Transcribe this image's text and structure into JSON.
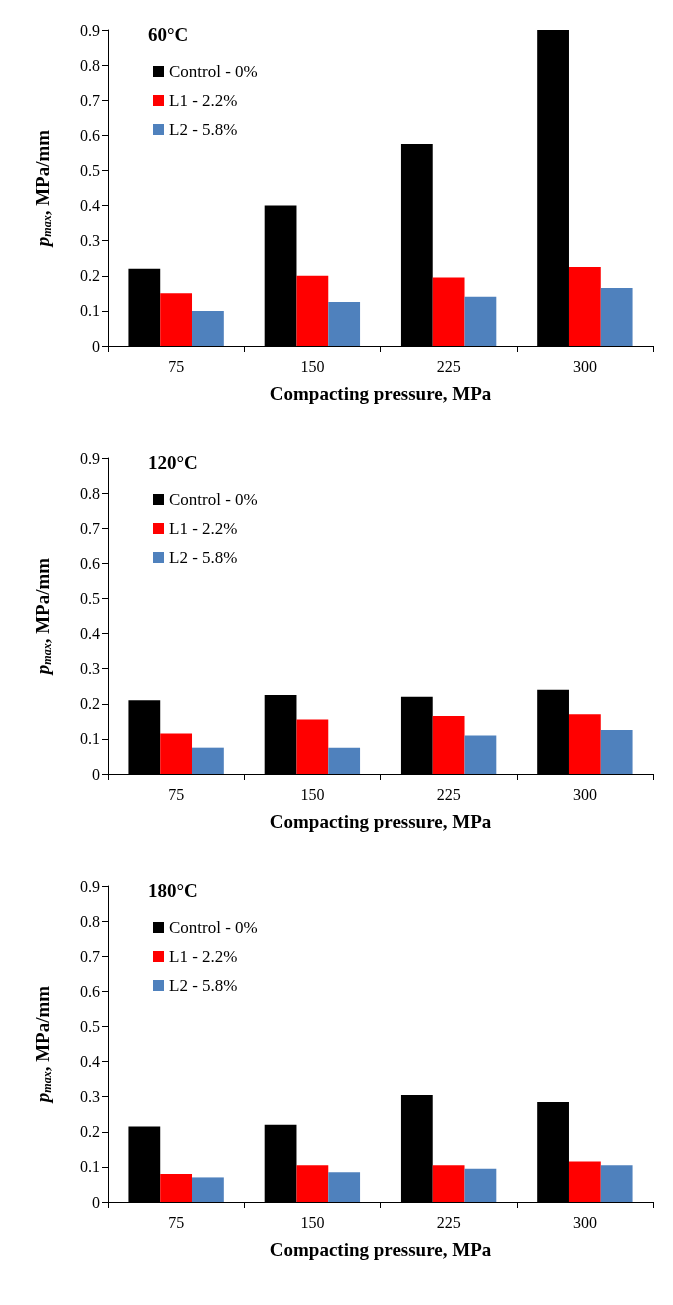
{
  "chart_data": [
    {
      "type": "bar",
      "title": "60°C",
      "xlabel": "Compacting pressure, MPa",
      "ylabel": "p$_{max}$, MPa/mm",
      "categories": [
        "75",
        "150",
        "225",
        "300"
      ],
      "series": [
        {
          "name": "Control - 0%",
          "color": "#000000",
          "values": [
            0.22,
            0.4,
            0.575,
            0.9
          ]
        },
        {
          "name": "L1 - 2.2%",
          "color": "#ff0000",
          "values": [
            0.15,
            0.2,
            0.195,
            0.225
          ]
        },
        {
          "name": "L2 - 5.8%",
          "color": "#4f81bd",
          "values": [
            0.1,
            0.125,
            0.14,
            0.165
          ]
        }
      ],
      "ylim": [
        0,
        0.9
      ],
      "yticks": [
        0,
        0.1,
        0.2,
        0.3,
        0.4,
        0.5,
        0.6,
        0.7,
        0.8,
        0.9
      ],
      "grid": false,
      "legend": "top left"
    },
    {
      "type": "bar",
      "title": "120°C",
      "xlabel": "Compacting pressure, MPa",
      "ylabel": "p$_{max}$, MPa/mm",
      "categories": [
        "75",
        "150",
        "225",
        "300"
      ],
      "series": [
        {
          "name": "Control - 0%",
          "color": "#000000",
          "values": [
            0.21,
            0.225,
            0.22,
            0.24
          ]
        },
        {
          "name": "L1 - 2.2%",
          "color": "#ff0000",
          "values": [
            0.115,
            0.155,
            0.165,
            0.17
          ]
        },
        {
          "name": "L2 - 5.8%",
          "color": "#4f81bd",
          "values": [
            0.075,
            0.075,
            0.11,
            0.125
          ]
        }
      ],
      "ylim": [
        0,
        0.9
      ],
      "yticks": [
        0,
        0.1,
        0.2,
        0.3,
        0.4,
        0.5,
        0.6,
        0.7,
        0.8,
        0.9
      ],
      "grid": false,
      "legend": "top left"
    },
    {
      "type": "bar",
      "title": "180°C",
      "xlabel": "Compacting pressure, MPa",
      "ylabel": "p$_{max}$, MPa/mm",
      "categories": [
        "75",
        "150",
        "225",
        "300"
      ],
      "series": [
        {
          "name": "Control - 0%",
          "color": "#000000",
          "values": [
            0.215,
            0.22,
            0.305,
            0.285
          ]
        },
        {
          "name": "L1 - 2.2%",
          "color": "#ff0000",
          "values": [
            0.08,
            0.105,
            0.105,
            0.115
          ]
        },
        {
          "name": "L2 - 5.8%",
          "color": "#4f81bd",
          "values": [
            0.07,
            0.085,
            0.095,
            0.105
          ]
        }
      ],
      "ylim": [
        0,
        0.9
      ],
      "yticks": [
        0,
        0.1,
        0.2,
        0.3,
        0.4,
        0.5,
        0.6,
        0.7,
        0.8,
        0.9
      ],
      "grid": false,
      "legend": "top left"
    }
  ]
}
